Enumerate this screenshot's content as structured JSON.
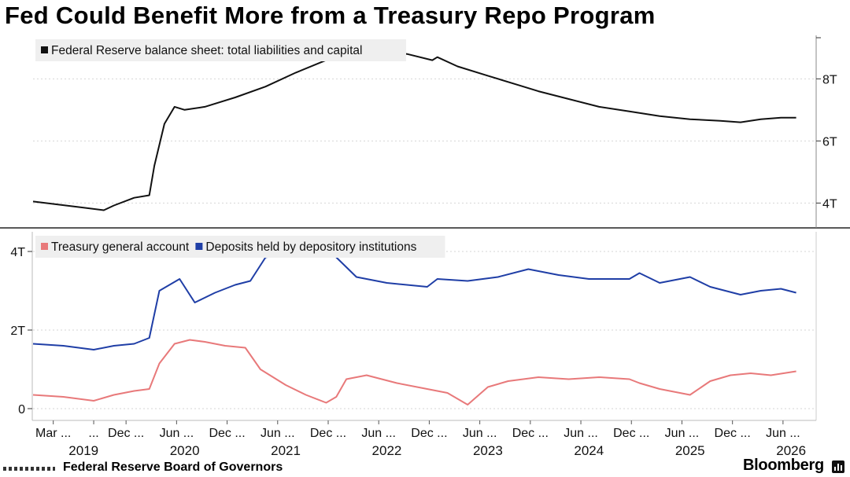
{
  "title": "Fed Could Benefit More from a Treasury Repo Program",
  "footer": {
    "source": "Federal Reserve Board of Governors",
    "brand": "Bloomberg"
  },
  "colors": {
    "black": "#111111",
    "red": "#e8797a",
    "blue": "#1f3ea6",
    "legend_bg": "#efefef"
  },
  "chart_data": [
    {
      "type": "line",
      "panel": "top",
      "legend": [
        "Federal Reserve balance sheet: total liabilities and capital"
      ],
      "y_ticks": [
        "4T",
        "6T",
        "8T"
      ],
      "y_tick_values": [
        4,
        6,
        8
      ],
      "ylim": [
        3.2,
        9.4
      ],
      "y_axis_side": "right",
      "unit": "trillions USD",
      "series": [
        {
          "name": "Federal Reserve balance sheet: total liabilities and capital",
          "color": "#111111",
          "x": [
            2019.0,
            2019.5,
            2019.7,
            2019.8,
            2020.0,
            2020.15,
            2020.2,
            2020.3,
            2020.4,
            2020.5,
            2020.7,
            2021.0,
            2021.3,
            2021.6,
            2021.9,
            2022.15,
            2022.35,
            2022.7,
            2022.95,
            2023.0,
            2023.2,
            2023.5,
            2023.8,
            2024.0,
            2024.3,
            2024.6,
            2024.9,
            2025.2,
            2025.5,
            2025.8,
            2026.0,
            2026.2,
            2026.4,
            2026.55
          ],
          "values": [
            4.05,
            3.85,
            3.77,
            3.92,
            4.17,
            4.25,
            5.2,
            6.55,
            7.1,
            7.0,
            7.1,
            7.4,
            7.75,
            8.2,
            8.6,
            8.9,
            8.95,
            8.8,
            8.6,
            8.7,
            8.4,
            8.1,
            7.8,
            7.6,
            7.35,
            7.1,
            6.95,
            6.8,
            6.7,
            6.65,
            6.6,
            6.7,
            6.75,
            6.75
          ]
        }
      ]
    },
    {
      "type": "line",
      "panel": "bottom",
      "legend": [
        "Treasury general account",
        "Deposits held by depository institutions"
      ],
      "y_ticks": [
        "0",
        "2T",
        "4T"
      ],
      "y_tick_values": [
        0,
        2,
        4
      ],
      "ylim": [
        -0.3,
        4.5
      ],
      "y_axis_side": "left",
      "unit": "trillions USD",
      "series": [
        {
          "name": "Treasury general account",
          "color": "#e8797a",
          "x": [
            2019.0,
            2019.3,
            2019.6,
            2019.8,
            2020.0,
            2020.15,
            2020.25,
            2020.4,
            2020.55,
            2020.7,
            2020.9,
            2021.1,
            2021.25,
            2021.5,
            2021.7,
            2021.9,
            2022.0,
            2022.1,
            2022.3,
            2022.6,
            2022.9,
            2023.1,
            2023.3,
            2023.5,
            2023.7,
            2024.0,
            2024.3,
            2024.6,
            2024.9,
            2025.0,
            2025.2,
            2025.5,
            2025.7,
            2025.9,
            2026.1,
            2026.3,
            2026.55
          ],
          "values": [
            0.35,
            0.3,
            0.2,
            0.35,
            0.45,
            0.5,
            1.15,
            1.65,
            1.75,
            1.7,
            1.6,
            1.55,
            1.0,
            0.6,
            0.35,
            0.15,
            0.3,
            0.75,
            0.85,
            0.65,
            0.5,
            0.4,
            0.1,
            0.55,
            0.7,
            0.8,
            0.75,
            0.8,
            0.75,
            0.65,
            0.5,
            0.35,
            0.7,
            0.85,
            0.9,
            0.85,
            0.95
          ]
        },
        {
          "name": "Deposits held by depository institutions",
          "color": "#1f3ea6",
          "x": [
            2019.0,
            2019.3,
            2019.6,
            2019.8,
            2020.0,
            2020.15,
            2020.25,
            2020.45,
            2020.6,
            2020.8,
            2021.0,
            2021.15,
            2021.3,
            2021.5,
            2021.7,
            2021.9,
            2022.0,
            2022.2,
            2022.5,
            2022.9,
            2023.0,
            2023.3,
            2023.6,
            2023.9,
            2024.2,
            2024.5,
            2024.9,
            2025.0,
            2025.2,
            2025.5,
            2025.7,
            2026.0,
            2026.2,
            2026.4,
            2026.55
          ],
          "values": [
            1.65,
            1.6,
            1.5,
            1.6,
            1.65,
            1.8,
            3.0,
            3.3,
            2.7,
            2.95,
            3.15,
            3.25,
            3.85,
            3.95,
            4.2,
            4.25,
            3.85,
            3.35,
            3.2,
            3.1,
            3.3,
            3.25,
            3.35,
            3.55,
            3.4,
            3.3,
            3.3,
            3.45,
            3.2,
            3.35,
            3.1,
            2.9,
            3.0,
            3.05,
            2.95
          ]
        }
      ]
    }
  ],
  "x_axis": {
    "labels": [
      {
        "text": "Mar ...",
        "x": 2019.2
      },
      {
        "text": "...",
        "x": 2019.6
      },
      {
        "text": "Dec ...",
        "x": 2019.92
      },
      {
        "text": "Jun ...",
        "x": 2020.42
      },
      {
        "text": "Dec ...",
        "x": 2020.92
      },
      {
        "text": "Jun ...",
        "x": 2021.42
      },
      {
        "text": "Dec ...",
        "x": 2021.92
      },
      {
        "text": "Jun ...",
        "x": 2022.42
      },
      {
        "text": "Dec ...",
        "x": 2022.92
      },
      {
        "text": "Jun ...",
        "x": 2023.42
      },
      {
        "text": "Dec ...",
        "x": 2023.92
      },
      {
        "text": "Jun ...",
        "x": 2024.42
      },
      {
        "text": "Dec ...",
        "x": 2024.92
      },
      {
        "text": "Jun ...",
        "x": 2025.42
      },
      {
        "text": "Dec ...",
        "x": 2025.92
      },
      {
        "text": "Jun ...",
        "x": 2026.42
      }
    ],
    "years": [
      {
        "text": "2019",
        "x": 2019.5
      },
      {
        "text": "2020",
        "x": 2020.5
      },
      {
        "text": "2021",
        "x": 2021.5
      },
      {
        "text": "2022",
        "x": 2022.5
      },
      {
        "text": "2023",
        "x": 2023.5
      },
      {
        "text": "2024",
        "x": 2024.5
      },
      {
        "text": "2025",
        "x": 2025.5
      },
      {
        "text": "2026",
        "x": 2026.5
      }
    ],
    "xlim": [
      2019.0,
      2026.6
    ]
  }
}
